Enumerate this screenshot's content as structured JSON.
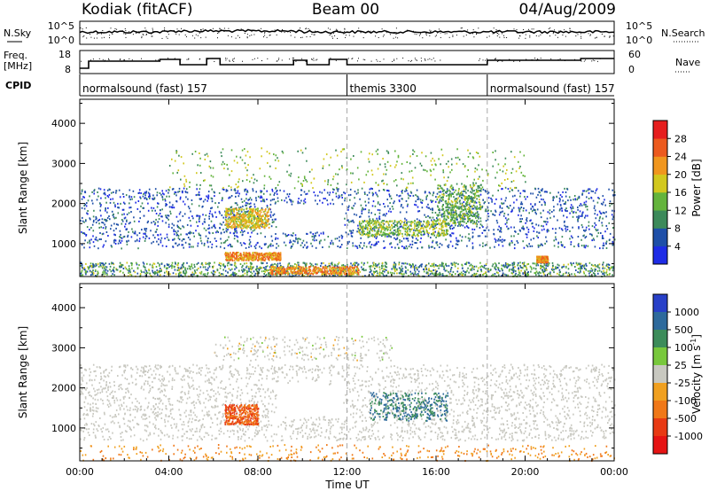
{
  "header": {
    "station": "Kodiak (fitACF)",
    "beam": "Beam 00",
    "date": "04/Aug/2009"
  },
  "noise_panel": {
    "left_label": "N.Sky",
    "right_label": "N.Search",
    "left_ticks": [
      "10^5",
      "10^0"
    ],
    "right_ticks": [
      "10^5",
      "10^0"
    ]
  },
  "freq_panel": {
    "left_label_1": "Freq.",
    "left_label_2": "[MHz]",
    "right_label": "Nave",
    "left_ticks": [
      "18",
      "8"
    ],
    "right_ticks": [
      "60",
      "0"
    ]
  },
  "cpid": {
    "label": "CPID",
    "segments": [
      {
        "name": "normalsound (fast) 157",
        "start_ut": 0.0,
        "end_ut": 12.0
      },
      {
        "name": "themis 3300",
        "start_ut": 12.0,
        "end_ut": 18.3
      },
      {
        "name": "normalsound (fast) 157",
        "start_ut": 18.3,
        "end_ut": 24.0
      }
    ]
  },
  "power_colorbar": {
    "label": "Power [dB]",
    "ticks": [
      "4",
      "8",
      "12",
      "16",
      "20",
      "24",
      "28"
    ],
    "colors": [
      "#1e2ce6",
      "#1e4fa8",
      "#3c8a5a",
      "#64b43c",
      "#d2c81e",
      "#f0961e",
      "#ec5a1e",
      "#e61e1e"
    ]
  },
  "velocity_colorbar": {
    "label": "Velocity [m s",
    "label_sup": "-1",
    "label_end": "]",
    "ticks": [
      "1000",
      "500",
      "100",
      "25",
      "-25",
      "-100",
      "-500",
      "-1000"
    ],
    "colors": [
      "#2840c8",
      "#2e6a9c",
      "#3c8c5a",
      "#78c83c",
      "#c8c8c0",
      "#f0a020",
      "#f07818",
      "#e83a14",
      "#e61414"
    ]
  },
  "chart_data": [
    {
      "type": "heatmap",
      "title": "Power",
      "xlabel": "Time UT",
      "ylabel": "Slant Range [km]",
      "xlim": [
        0,
        24
      ],
      "ylim": [
        180,
        4600
      ],
      "x_ticks": [
        "00:00",
        "04:00",
        "08:00",
        "12:00",
        "16:00",
        "20:00",
        "00:00"
      ],
      "y_ticks": [
        1000,
        2000,
        3000,
        4000
      ],
      "colorbar": "Power [dB]",
      "features": [
        {
          "region": "near-range band",
          "t_start": 0,
          "t_end": 24,
          "r_min": 200,
          "r_max": 500,
          "power_db": 10
        },
        {
          "region": "strong echoes",
          "t_start": 6.5,
          "t_end": 9.0,
          "r_min": 600,
          "r_max": 800,
          "power_db": 28
        },
        {
          "region": "strong echoes",
          "t_start": 8.5,
          "t_end": 12.5,
          "r_min": 250,
          "r_max": 450,
          "power_db": 28
        },
        {
          "region": "scatter patch",
          "t_start": 6.5,
          "t_end": 8.5,
          "r_min": 1400,
          "r_max": 1900,
          "power_db": 24
        },
        {
          "region": "scatter patch",
          "t_start": 12.5,
          "t_end": 16.5,
          "r_min": 1200,
          "r_max": 1600,
          "power_db": 20
        },
        {
          "region": "scatter arc",
          "t_start": 16.0,
          "t_end": 18.0,
          "r_min": 1500,
          "r_max": 2500,
          "power_db": 18
        },
        {
          "region": "scatter patch",
          "t_start": 20.5,
          "t_end": 21.0,
          "r_min": 550,
          "r_max": 700,
          "power_db": 28
        },
        {
          "region": "mid-range band",
          "t_start": 0,
          "t_end": 24,
          "r_min": 1000,
          "r_max": 2300,
          "power_db": 6
        }
      ]
    },
    {
      "type": "heatmap",
      "title": "Velocity",
      "xlabel": "Time UT",
      "ylabel": "Slant Range [km]",
      "xlim": [
        0,
        24
      ],
      "ylim": [
        180,
        4600
      ],
      "x_ticks": [
        "00:00",
        "04:00",
        "08:00",
        "12:00",
        "16:00",
        "20:00",
        "00:00"
      ],
      "y_ticks": [
        1000,
        2000,
        3000,
        4000
      ],
      "colorbar": "Velocity [m s-1]",
      "features": [
        {
          "region": "ground scatter",
          "t_start": 0,
          "t_end": 24,
          "r_min": 800,
          "r_max": 2500,
          "velocity": 0
        },
        {
          "region": "positive arc",
          "t_start": 13.0,
          "t_end": 16.5,
          "r_min": 1200,
          "r_max": 1900,
          "velocity": 500
        },
        {
          "region": "negative patch",
          "t_start": 6.5,
          "t_end": 8.0,
          "r_min": 1100,
          "r_max": 1600,
          "velocity": -500
        },
        {
          "region": "near-range",
          "t_start": 0,
          "t_end": 24,
          "r_min": 200,
          "r_max": 600,
          "velocity": -100
        }
      ]
    }
  ]
}
